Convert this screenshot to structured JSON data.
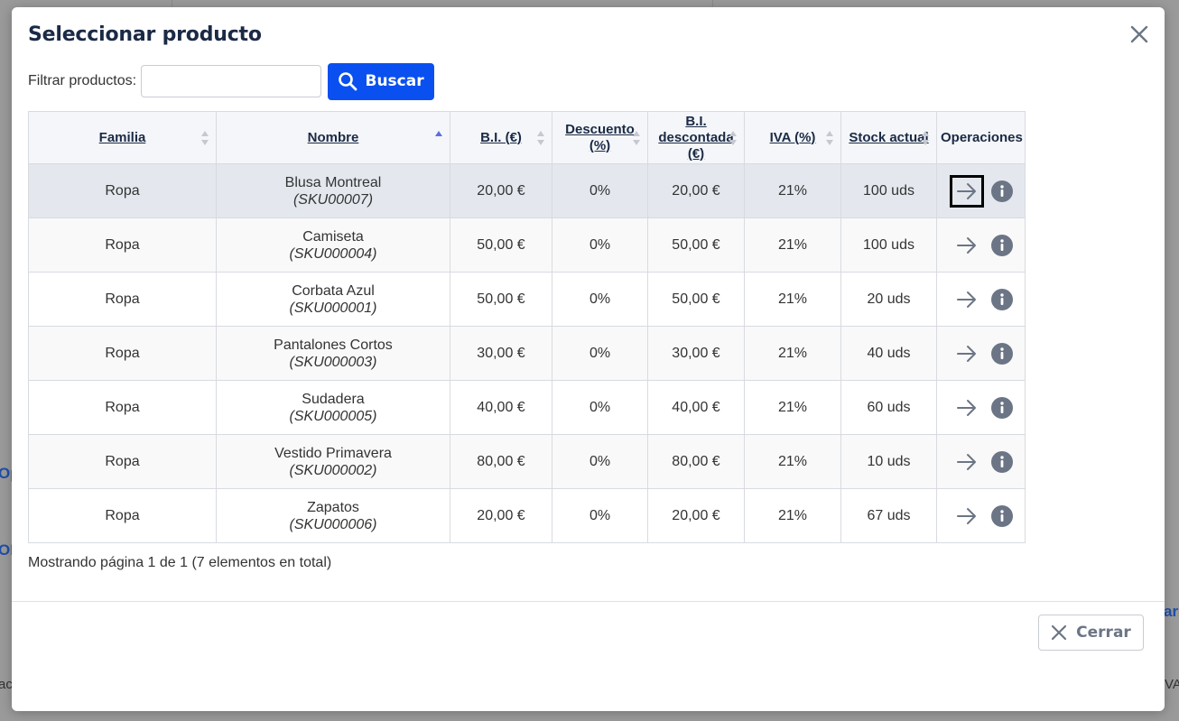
{
  "background": {
    "fragments": [
      "Op",
      "OI",
      "ar",
      "ac",
      "VA"
    ]
  },
  "modal": {
    "title": "Seleccionar producto",
    "close_icon": "close-icon"
  },
  "filter": {
    "label": "Filtrar productos:",
    "value": "",
    "placeholder": "",
    "search_label": "Buscar",
    "search_icon": "search-icon"
  },
  "table": {
    "columns": [
      {
        "key": "familia",
        "label": "Familia",
        "sortable": true,
        "sort": "none"
      },
      {
        "key": "nombre",
        "label": "Nombre",
        "sortable": true,
        "sort": "asc"
      },
      {
        "key": "bi",
        "label": "B.I. (€)",
        "sortable": true,
        "sort": "none"
      },
      {
        "key": "descuento",
        "label": "Descuento (%)",
        "sortable": true,
        "sort": "none"
      },
      {
        "key": "bi_desc",
        "label": "B.I. descontada (€)",
        "sortable": true,
        "sort": "none"
      },
      {
        "key": "iva",
        "label": "IVA (%)",
        "sortable": true,
        "sort": "none"
      },
      {
        "key": "stock",
        "label": "Stock actual",
        "sortable": true,
        "sort": "none"
      },
      {
        "key": "ops",
        "label": "Operaciones",
        "sortable": false,
        "sort": "none"
      }
    ],
    "rows": [
      {
        "familia": "Ropa",
        "nombre": "Blusa Montreal",
        "sku": "(SKU00007)",
        "bi": "20,00 €",
        "descuento": "0%",
        "bi_desc": "20,00 €",
        "iva": "21%",
        "stock": "100 uds"
      },
      {
        "familia": "Ropa",
        "nombre": "Camiseta",
        "sku": "(SKU000004)",
        "bi": "50,00 €",
        "descuento": "0%",
        "bi_desc": "50,00 €",
        "iva": "21%",
        "stock": "100 uds"
      },
      {
        "familia": "Ropa",
        "nombre": "Corbata Azul",
        "sku": "(SKU000001)",
        "bi": "50,00 €",
        "descuento": "0%",
        "bi_desc": "50,00 €",
        "iva": "21%",
        "stock": "20 uds"
      },
      {
        "familia": "Ropa",
        "nombre": "Pantalones Cortos",
        "sku": "(SKU000003)",
        "bi": "30,00 €",
        "descuento": "0%",
        "bi_desc": "30,00 €",
        "iva": "21%",
        "stock": "40 uds"
      },
      {
        "familia": "Ropa",
        "nombre": "Sudadera",
        "sku": "(SKU000005)",
        "bi": "40,00 €",
        "descuento": "0%",
        "bi_desc": "40,00 €",
        "iva": "21%",
        "stock": "60 uds"
      },
      {
        "familia": "Ropa",
        "nombre": "Vestido Primavera",
        "sku": "(SKU000002)",
        "bi": "80,00 €",
        "descuento": "0%",
        "bi_desc": "80,00 €",
        "iva": "21%",
        "stock": "10 uds"
      },
      {
        "familia": "Ropa",
        "nombre": "Zapatos",
        "sku": "(SKU000006)",
        "bi": "20,00 €",
        "descuento": "0%",
        "bi_desc": "20,00 €",
        "iva": "21%",
        "stock": "67 uds"
      }
    ],
    "selected_row": 0,
    "op_icons": [
      "arrow-right-icon",
      "info-icon"
    ]
  },
  "paging": {
    "text": "Mostrando página 1 de 1 (7 elementos en total)"
  },
  "footer": {
    "close_label": "Cerrar",
    "close_icon": "close-icon"
  },
  "colors": {
    "primary": "#0a50f0",
    "title": "#1b2a45",
    "icon_gray": "#6b7585",
    "sort_active": "#5a6ee0",
    "sort_inactive": "#c5c9cf",
    "selected_row": "#e4e8ee"
  }
}
